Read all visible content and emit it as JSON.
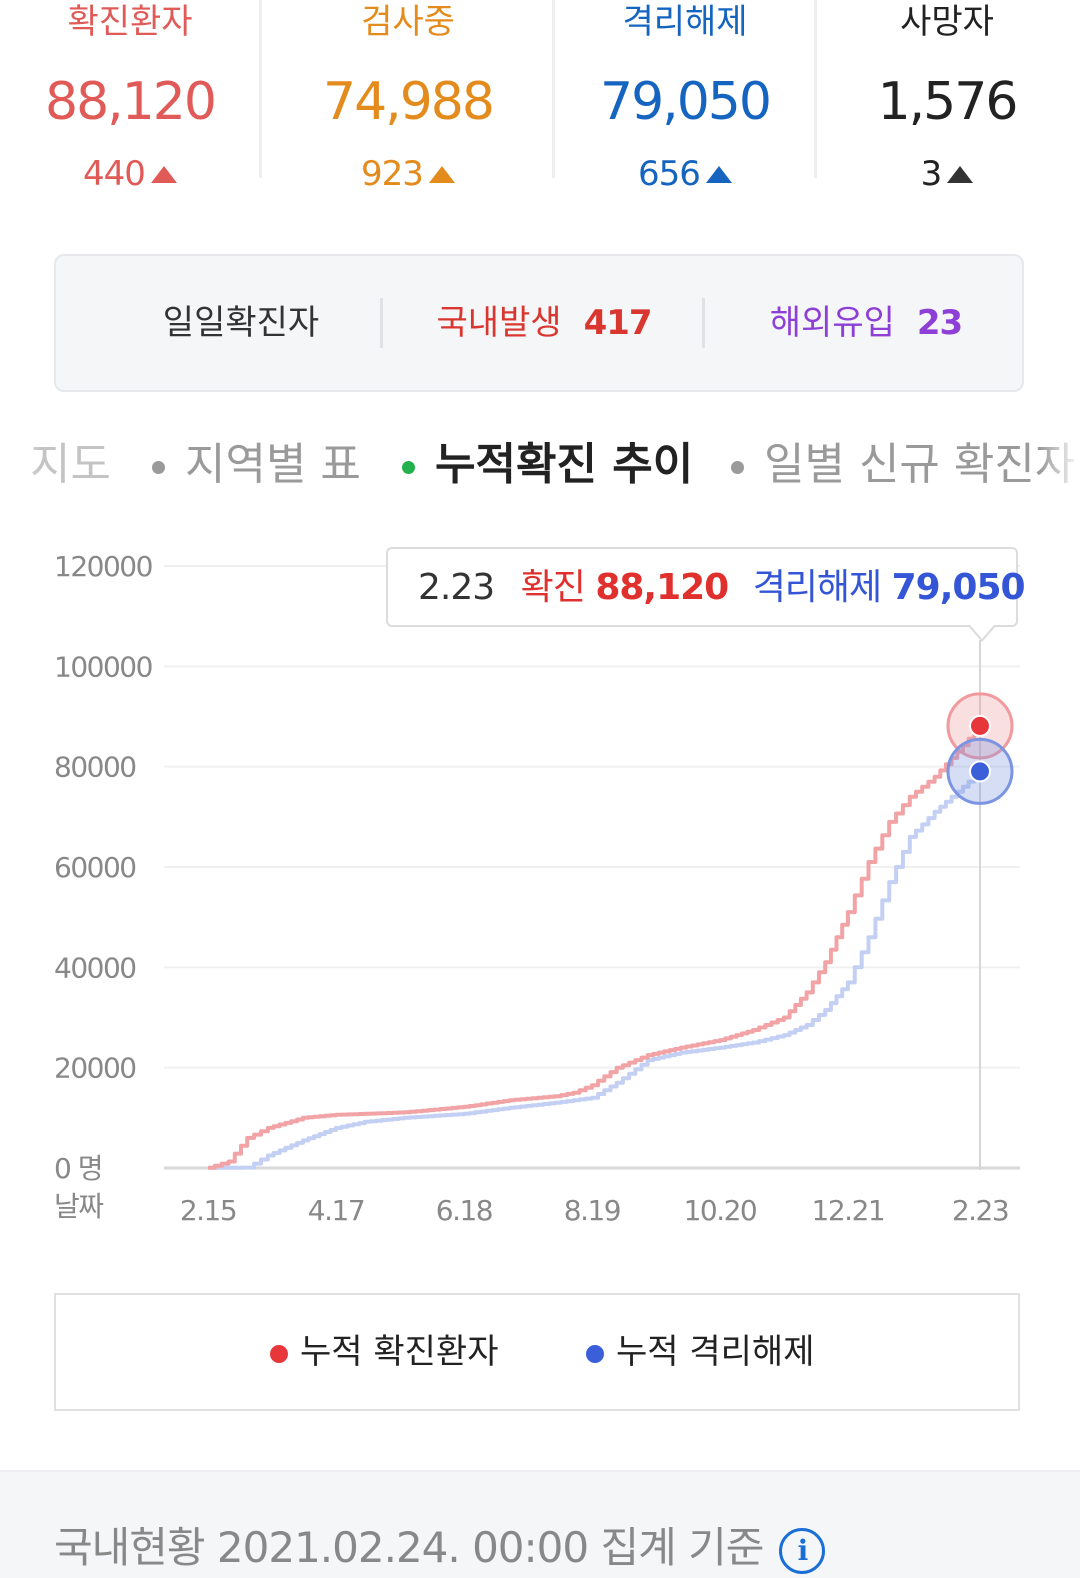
{
  "stats": [
    {
      "label": "확진환자",
      "value": "88,120",
      "delta": "440",
      "color": "#e05a57"
    },
    {
      "label": "검사중",
      "value": "74,988",
      "delta": "923",
      "color": "#e38b1c"
    },
    {
      "label": "격리해제",
      "value": "79,050",
      "delta": "656",
      "color": "#1565c0"
    },
    {
      "label": "사망자",
      "value": "1,576",
      "delta": "3",
      "color": "#222222"
    }
  ],
  "daily": {
    "label": "일일확진자",
    "domestic_label": "국내발생",
    "domestic_value": "417",
    "overseas_label": "해외유입",
    "overseas_value": "23"
  },
  "tabs": [
    "지도",
    "지역별 표",
    "누적확진 추이",
    "일별 신규 확진자"
  ],
  "active_tab": 2,
  "tooltip": {
    "date": "2.23",
    "confirmed_label": "확진",
    "confirmed_value": "88,120",
    "released_label": "격리해제",
    "released_value": "79,050"
  },
  "legend": [
    {
      "label": "누적 확진환자",
      "color": "#e8373a"
    },
    {
      "label": "누적 격리해제",
      "color": "#3a5fd9"
    }
  ],
  "footer": {
    "text": "국내현황 2021.02.24. 00:00 집계 기준",
    "icon": "info-icon"
  },
  "chart_data": {
    "type": "line",
    "ylim": [
      0,
      120000
    ],
    "y_ticks": [
      "120000",
      "100000",
      "80000",
      "60000",
      "40000",
      "20000",
      "0"
    ],
    "y_unit": "명",
    "x_axis_label": "날짜",
    "x_ticks": [
      "2.15",
      "4.17",
      "6.18",
      "8.19",
      "10.20",
      "12.21",
      "2.23"
    ],
    "highlight_x": "2.23",
    "series": [
      {
        "name": "누적 확진환자",
        "color": "#f2a3a5",
        "x": [
          "2.15",
          "2.25",
          "3.05",
          "3.15",
          "4.01",
          "4.17",
          "5.01",
          "5.20",
          "6.18",
          "7.10",
          "8.01",
          "8.10",
          "8.19",
          "8.31",
          "9.15",
          "10.01",
          "10.20",
          "11.05",
          "11.20",
          "12.01",
          "12.10",
          "12.21",
          "12.31",
          "1.10",
          "1.20",
          "2.01",
          "2.12",
          "2.23"
        ],
        "y": [
          30,
          1300,
          6000,
          8000,
          10000,
          10600,
          10800,
          11100,
          12200,
          13500,
          14300,
          15000,
          16500,
          20000,
          22500,
          24000,
          25500,
          27500,
          30000,
          35000,
          41000,
          51000,
          61000,
          69000,
          74000,
          78000,
          83000,
          88120
        ]
      },
      {
        "name": "누적 격리해제",
        "color": "#c4d0f3",
        "x": [
          "2.15",
          "3.05",
          "3.15",
          "4.01",
          "4.17",
          "5.01",
          "5.20",
          "6.18",
          "7.10",
          "8.01",
          "8.19",
          "8.31",
          "9.15",
          "10.01",
          "10.20",
          "11.05",
          "11.20",
          "12.01",
          "12.10",
          "12.21",
          "12.31",
          "1.10",
          "1.20",
          "2.01",
          "2.12",
          "2.23"
        ],
        "y": [
          16,
          80,
          2500,
          5500,
          8000,
          9200,
          10000,
          10800,
          12000,
          13000,
          14000,
          17000,
          21500,
          23000,
          24000,
          25000,
          26500,
          28500,
          31500,
          37000,
          46000,
          57000,
          66000,
          71000,
          75000,
          79050
        ]
      }
    ]
  }
}
